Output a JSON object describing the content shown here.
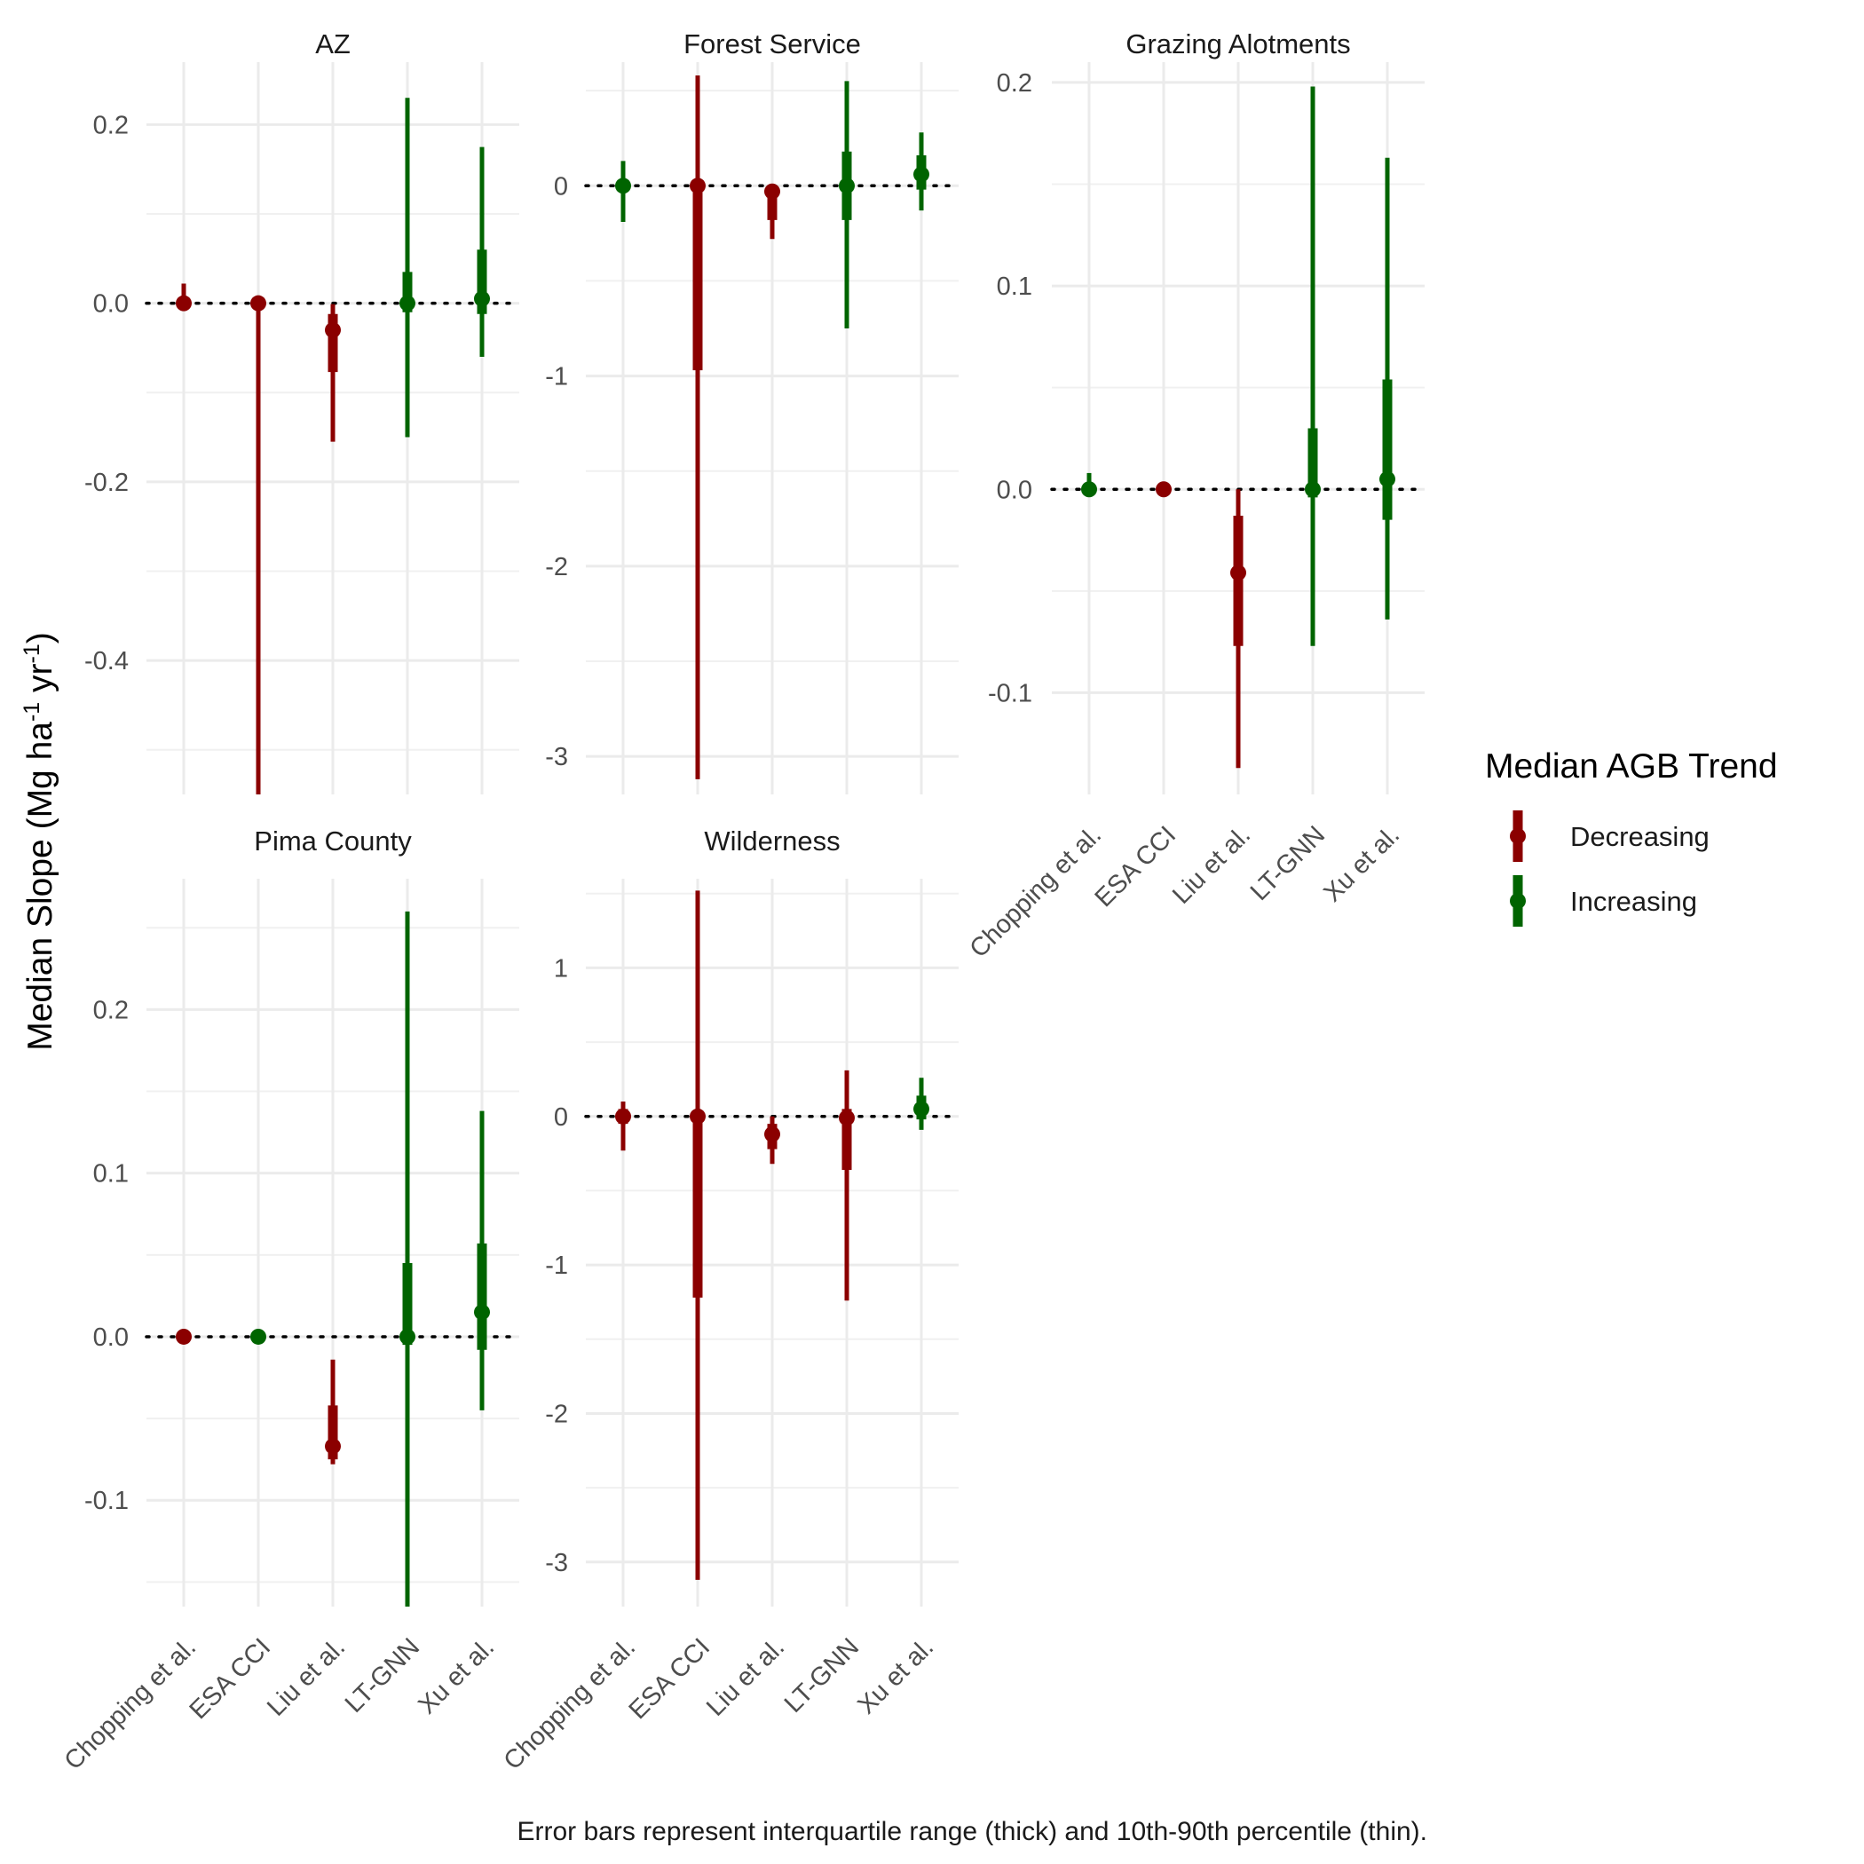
{
  "chart_data": {
    "type": "errorbar",
    "ylabel": "Median Slope (Mg ha-1 yr-1)",
    "ylabel_parts": {
      "main": "Median Slope (Mg ha",
      "sup1": "-1",
      "mid": " yr",
      "sup2": "-1",
      "end": ")"
    },
    "caption": "Error bars represent interquartile range (thick) and 10th-90th percentile (thin).",
    "legend": {
      "title": "Median AGB Trend",
      "entries": [
        {
          "label": "Decreasing",
          "color": "#8b0000"
        },
        {
          "label": "Increasing",
          "color": "#006400"
        }
      ]
    },
    "categories": [
      "Chopping et al.",
      "ESA CCI",
      "Liu et al.",
      "LT-GNN",
      "Xu et al."
    ],
    "facets": [
      {
        "title": "AZ",
        "ylim": [
          -0.55,
          0.27
        ],
        "yticks": [
          -0.4,
          -0.2,
          0.0,
          0.2
        ],
        "ytick_labels": [
          "-0.4",
          "-0.2",
          "0.0",
          "0.2"
        ],
        "points": [
          {
            "category": "Chopping et al.",
            "median": 0.0,
            "q25": 0.0,
            "q75": 0.0,
            "p10": 0.0,
            "p90": 0.022,
            "trend": "Decreasing"
          },
          {
            "category": "ESA CCI",
            "median": 0.0,
            "q25": 0.0,
            "q75": 0.0,
            "p10": -0.55,
            "p90": 0.0,
            "trend": "Decreasing"
          },
          {
            "category": "Liu et al.",
            "median": -0.03,
            "q25": -0.077,
            "q75": -0.012,
            "p10": -0.155,
            "p90": -0.001,
            "trend": "Decreasing"
          },
          {
            "category": "LT-GNN",
            "median": 0.0,
            "q25": -0.01,
            "q75": 0.035,
            "p10": -0.15,
            "p90": 0.23,
            "trend": "Increasing"
          },
          {
            "category": "Xu et al.",
            "median": 0.005,
            "q25": -0.012,
            "q75": 0.06,
            "p10": -0.06,
            "p90": 0.175,
            "trend": "Increasing"
          }
        ]
      },
      {
        "title": "Forest Service",
        "ylim": [
          -3.2,
          0.65
        ],
        "yticks": [
          -3,
          -2,
          -1,
          0
        ],
        "ytick_labels": [
          "-3",
          "-2",
          "-1",
          "0"
        ],
        "points": [
          {
            "category": "Chopping et al.",
            "median": 0.0,
            "q25": -0.03,
            "q75": 0.03,
            "p10": -0.19,
            "p90": 0.13,
            "trend": "Increasing"
          },
          {
            "category": "ESA CCI",
            "median": 0.0,
            "q25": -0.97,
            "q75": 0.0,
            "p10": -3.12,
            "p90": 0.58,
            "trend": "Decreasing"
          },
          {
            "category": "Liu et al.",
            "median": -0.03,
            "q25": -0.18,
            "q75": 0.0,
            "p10": -0.28,
            "p90": 0.0,
            "trend": "Decreasing"
          },
          {
            "category": "LT-GNN",
            "median": 0.0,
            "q25": -0.18,
            "q75": 0.18,
            "p10": -0.75,
            "p90": 0.55,
            "trend": "Increasing"
          },
          {
            "category": "Xu et al.",
            "median": 0.06,
            "q25": -0.02,
            "q75": 0.16,
            "p10": -0.13,
            "p90": 0.28,
            "trend": "Increasing"
          }
        ]
      },
      {
        "title": "Grazing Alotments",
        "ylim": [
          -0.15,
          0.21
        ],
        "yticks": [
          -0.1,
          0.0,
          0.1,
          0.2
        ],
        "ytick_labels": [
          "-0.1",
          "0.0",
          "0.1",
          "0.2"
        ],
        "points": [
          {
            "category": "Chopping et al.",
            "median": 0.0,
            "q25": 0.0,
            "q75": 0.002,
            "p10": -0.001,
            "p90": 0.008,
            "trend": "Increasing"
          },
          {
            "category": "ESA CCI",
            "median": 0.0,
            "q25": 0.0,
            "q75": 0.0,
            "p10": 0.0,
            "p90": 0.0,
            "trend": "Decreasing"
          },
          {
            "category": "Liu et al.",
            "median": -0.041,
            "q25": -0.077,
            "q75": -0.013,
            "p10": -0.137,
            "p90": 0.0,
            "trend": "Decreasing"
          },
          {
            "category": "LT-GNN",
            "median": 0.0,
            "q25": -0.004,
            "q75": 0.03,
            "p10": -0.077,
            "p90": 0.198,
            "trend": "Increasing"
          },
          {
            "category": "Xu et al.",
            "median": 0.005,
            "q25": -0.015,
            "q75": 0.054,
            "p10": -0.064,
            "p90": 0.163,
            "trend": "Increasing"
          }
        ]
      },
      {
        "title": "Pima County",
        "ylim": [
          -0.165,
          0.28
        ],
        "yticks": [
          -0.1,
          0.0,
          0.1,
          0.2
        ],
        "ytick_labels": [
          "-0.1",
          "0.0",
          "0.1",
          "0.2"
        ],
        "points": [
          {
            "category": "Chopping et al.",
            "median": 0.0,
            "q25": 0.0,
            "q75": 0.0,
            "p10": 0.0,
            "p90": 0.0,
            "trend": "Decreasing"
          },
          {
            "category": "ESA CCI",
            "median": 0.0,
            "q25": 0.0,
            "q75": 0.0,
            "p10": 0.0,
            "p90": 0.0,
            "trend": "Increasing"
          },
          {
            "category": "Liu et al.",
            "median": -0.067,
            "q25": -0.075,
            "q75": -0.042,
            "p10": -0.078,
            "p90": -0.014,
            "trend": "Decreasing"
          },
          {
            "category": "LT-GNN",
            "median": 0.0,
            "q25": -0.005,
            "q75": 0.045,
            "p10": -0.165,
            "p90": 0.26,
            "trend": "Increasing"
          },
          {
            "category": "Xu et al.",
            "median": 0.015,
            "q25": -0.008,
            "q75": 0.057,
            "p10": -0.045,
            "p90": 0.138,
            "trend": "Increasing"
          }
        ]
      },
      {
        "title": "Wilderness",
        "ylim": [
          -3.3,
          1.6
        ],
        "yticks": [
          -3,
          -2,
          -1,
          0,
          1
        ],
        "ytick_labels": [
          "-3",
          "-2",
          "-1",
          "0",
          "1"
        ],
        "points": [
          {
            "category": "Chopping et al.",
            "median": 0.0,
            "q25": -0.05,
            "q75": 0.05,
            "p10": -0.23,
            "p90": 0.1,
            "trend": "Decreasing"
          },
          {
            "category": "ESA CCI",
            "median": 0.0,
            "q25": -1.22,
            "q75": 0.0,
            "p10": -3.12,
            "p90": 1.52,
            "trend": "Decreasing"
          },
          {
            "category": "Liu et al.",
            "median": -0.12,
            "q25": -0.22,
            "q75": -0.05,
            "p10": -0.32,
            "p90": 0.0,
            "trend": "Decreasing"
          },
          {
            "category": "LT-GNN",
            "median": -0.01,
            "q25": -0.36,
            "q75": 0.05,
            "p10": -1.24,
            "p90": 0.31,
            "trend": "Decreasing"
          },
          {
            "category": "Xu et al.",
            "median": 0.05,
            "q25": -0.02,
            "q75": 0.14,
            "p10": -0.09,
            "p90": 0.26,
            "trend": "Increasing"
          }
        ]
      }
    ]
  }
}
